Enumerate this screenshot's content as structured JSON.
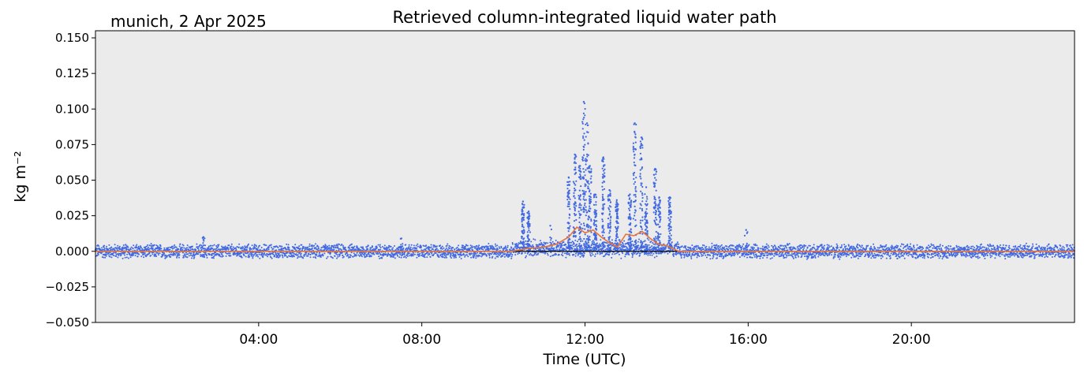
{
  "figure": {
    "title": "Retrieved column-integrated liquid water path",
    "location_date": "munich, 2 Apr 2025"
  },
  "chart_data": {
    "type": "scatter",
    "title": "Retrieved column-integrated liquid water path",
    "subtitle": "munich, 2 Apr 2025",
    "xlabel": "Time (UTC)",
    "ylabel": "kg m⁻²",
    "xlim_hours": [
      0,
      24
    ],
    "ylim": [
      -0.05,
      0.155
    ],
    "xticks": [
      {
        "hour": 4,
        "label": "04:00"
      },
      {
        "hour": 8,
        "label": "08:00"
      },
      {
        "hour": 12,
        "label": "12:00"
      },
      {
        "hour": 16,
        "label": "16:00"
      },
      {
        "hour": 20,
        "label": "20:00"
      }
    ],
    "yticks": [
      {
        "value": -0.05,
        "label": "−0.050"
      },
      {
        "value": -0.025,
        "label": "−0.025"
      },
      {
        "value": 0.0,
        "label": "0.000"
      },
      {
        "value": 0.025,
        "label": "0.025"
      },
      {
        "value": 0.05,
        "label": "0.050"
      },
      {
        "value": 0.075,
        "label": "0.075"
      },
      {
        "value": 0.1,
        "label": "0.100"
      },
      {
        "value": 0.125,
        "label": "0.125"
      },
      {
        "value": 0.15,
        "label": "0.150"
      }
    ],
    "background_color": "#ebebeb",
    "reference_line": {
      "y": 0.0,
      "color": "#000000"
    },
    "series": [
      {
        "kind": "points",
        "color": "#4169e1",
        "baseline_noise_range": [
          -0.004,
          0.004
        ],
        "spikes": [
          {
            "hour": 2.65,
            "y": 0.01
          },
          {
            "hour": 7.5,
            "y": 0.009
          },
          {
            "hour": 10.48,
            "y": 0.035
          },
          {
            "hour": 10.62,
            "y": 0.028
          },
          {
            "hour": 11.15,
            "y": 0.018
          },
          {
            "hour": 11.6,
            "y": 0.052
          },
          {
            "hour": 11.75,
            "y": 0.068
          },
          {
            "hour": 11.88,
            "y": 0.06
          },
          {
            "hour": 11.97,
            "y": 0.105
          },
          {
            "hour": 12.05,
            "y": 0.09
          },
          {
            "hour": 12.12,
            "y": 0.06
          },
          {
            "hour": 12.25,
            "y": 0.04
          },
          {
            "hour": 12.45,
            "y": 0.066
          },
          {
            "hour": 12.6,
            "y": 0.043
          },
          {
            "hour": 12.78,
            "y": 0.036
          },
          {
            "hour": 13.1,
            "y": 0.04
          },
          {
            "hour": 13.22,
            "y": 0.09
          },
          {
            "hour": 13.38,
            "y": 0.08
          },
          {
            "hour": 13.5,
            "y": 0.045
          },
          {
            "hour": 13.72,
            "y": 0.058
          },
          {
            "hour": 13.82,
            "y": 0.038
          },
          {
            "hour": 14.08,
            "y": 0.038
          },
          {
            "hour": 15.95,
            "y": 0.015
          }
        ]
      },
      {
        "kind": "line",
        "color": "#e8743b",
        "x_hours": [
          0,
          10.2,
          10.6,
          11.0,
          11.3,
          11.6,
          11.8,
          12.0,
          12.2,
          12.4,
          12.6,
          12.8,
          13.0,
          13.2,
          13.4,
          13.6,
          13.8,
          14.0,
          14.3,
          24
        ],
        "y": [
          0.0,
          0.0,
          0.002,
          0.003,
          0.005,
          0.01,
          0.017,
          0.013,
          0.015,
          0.01,
          0.006,
          0.003,
          0.012,
          0.011,
          0.014,
          0.009,
          0.005,
          0.004,
          0.0,
          0.0
        ]
      }
    ]
  }
}
